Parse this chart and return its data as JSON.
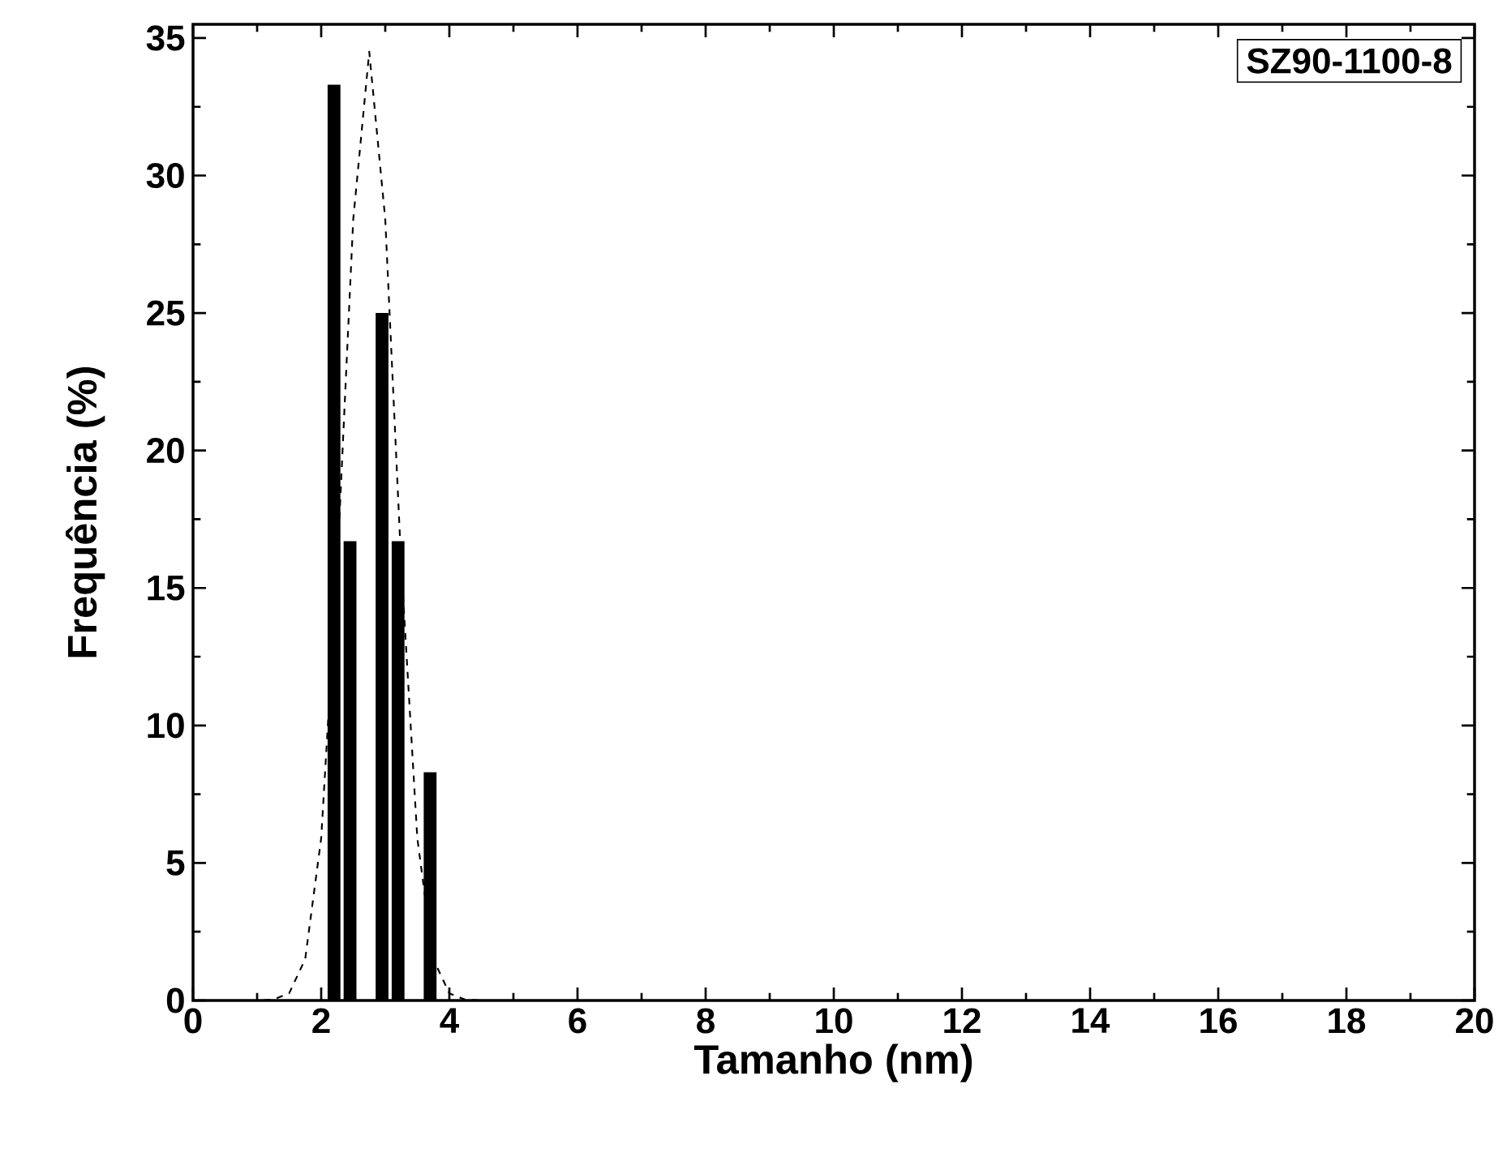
{
  "chart_data": {
    "type": "bar",
    "xlabel": "Tamanho (nm)",
    "ylabel": "Frequência (%)",
    "annotations": [
      "SZ90-1100-8"
    ],
    "xlim": [
      0,
      20
    ],
    "ylim": [
      0,
      35.5
    ],
    "xticks": [
      0,
      2,
      4,
      6,
      8,
      10,
      12,
      14,
      16,
      18,
      20
    ],
    "yticks": [
      0,
      5,
      10,
      15,
      20,
      25,
      30,
      35
    ],
    "grid": false,
    "marker": "none",
    "series": [
      {
        "color": "#000000",
        "x": [
          2.2,
          2.45,
          2.95,
          3.2,
          3.7
        ],
        "values": [
          33.3,
          16.7,
          25,
          16.7,
          8.3
        ]
      },
      {
        "type": "line",
        "color": "#000000",
        "line_style": "dashed",
        "x": [
          0.5,
          1.0,
          1.25,
          1.5,
          1.75,
          2.0,
          2.25,
          2.5,
          2.75,
          3.0,
          3.25,
          3.5,
          3.75,
          4.0,
          4.25,
          4.5,
          5.0
        ],
        "values": [
          0,
          0,
          0.03,
          0.26,
          1.5,
          5.9,
          15.8,
          28.4,
          34.5,
          28.4,
          15.8,
          5.9,
          1.5,
          0.26,
          0.03,
          0,
          0
        ]
      }
    ]
  }
}
